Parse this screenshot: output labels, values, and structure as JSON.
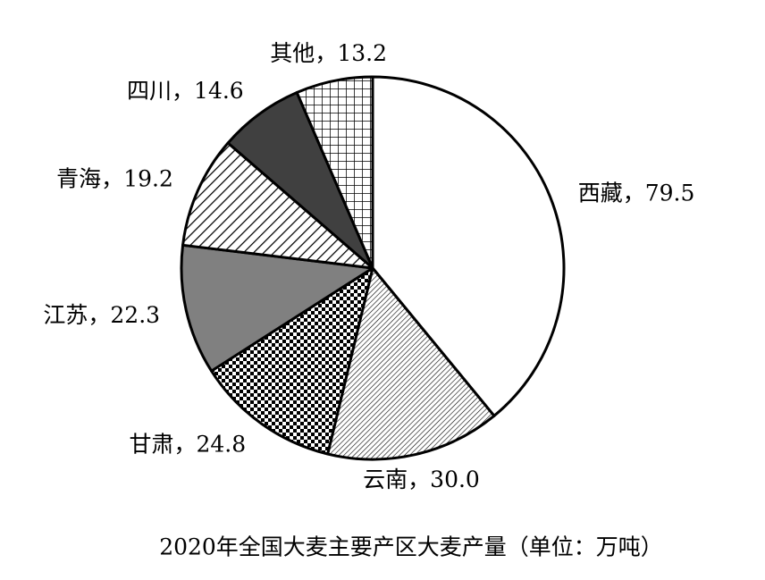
{
  "chart_data": {
    "type": "pie",
    "title": "2020年全国大麦主要产区大麦产量（单位：万吨）",
    "categories": [
      "西藏",
      "云南",
      "甘肃",
      "江苏",
      "青海",
      "四川",
      "其他"
    ],
    "values": [
      79.5,
      30.0,
      24.8,
      22.3,
      19.2,
      14.6,
      13.2
    ],
    "value_labels": [
      "79.5",
      "30.0",
      "24.8",
      "22.3",
      "19.2",
      "14.6",
      "13.2"
    ],
    "label_separator": "，",
    "fills": [
      "#ffffff",
      "url(#hatch-fine)",
      "url(#checker)",
      "#808080",
      "url(#stripes)",
      "#404040",
      "url(#grid)"
    ]
  }
}
